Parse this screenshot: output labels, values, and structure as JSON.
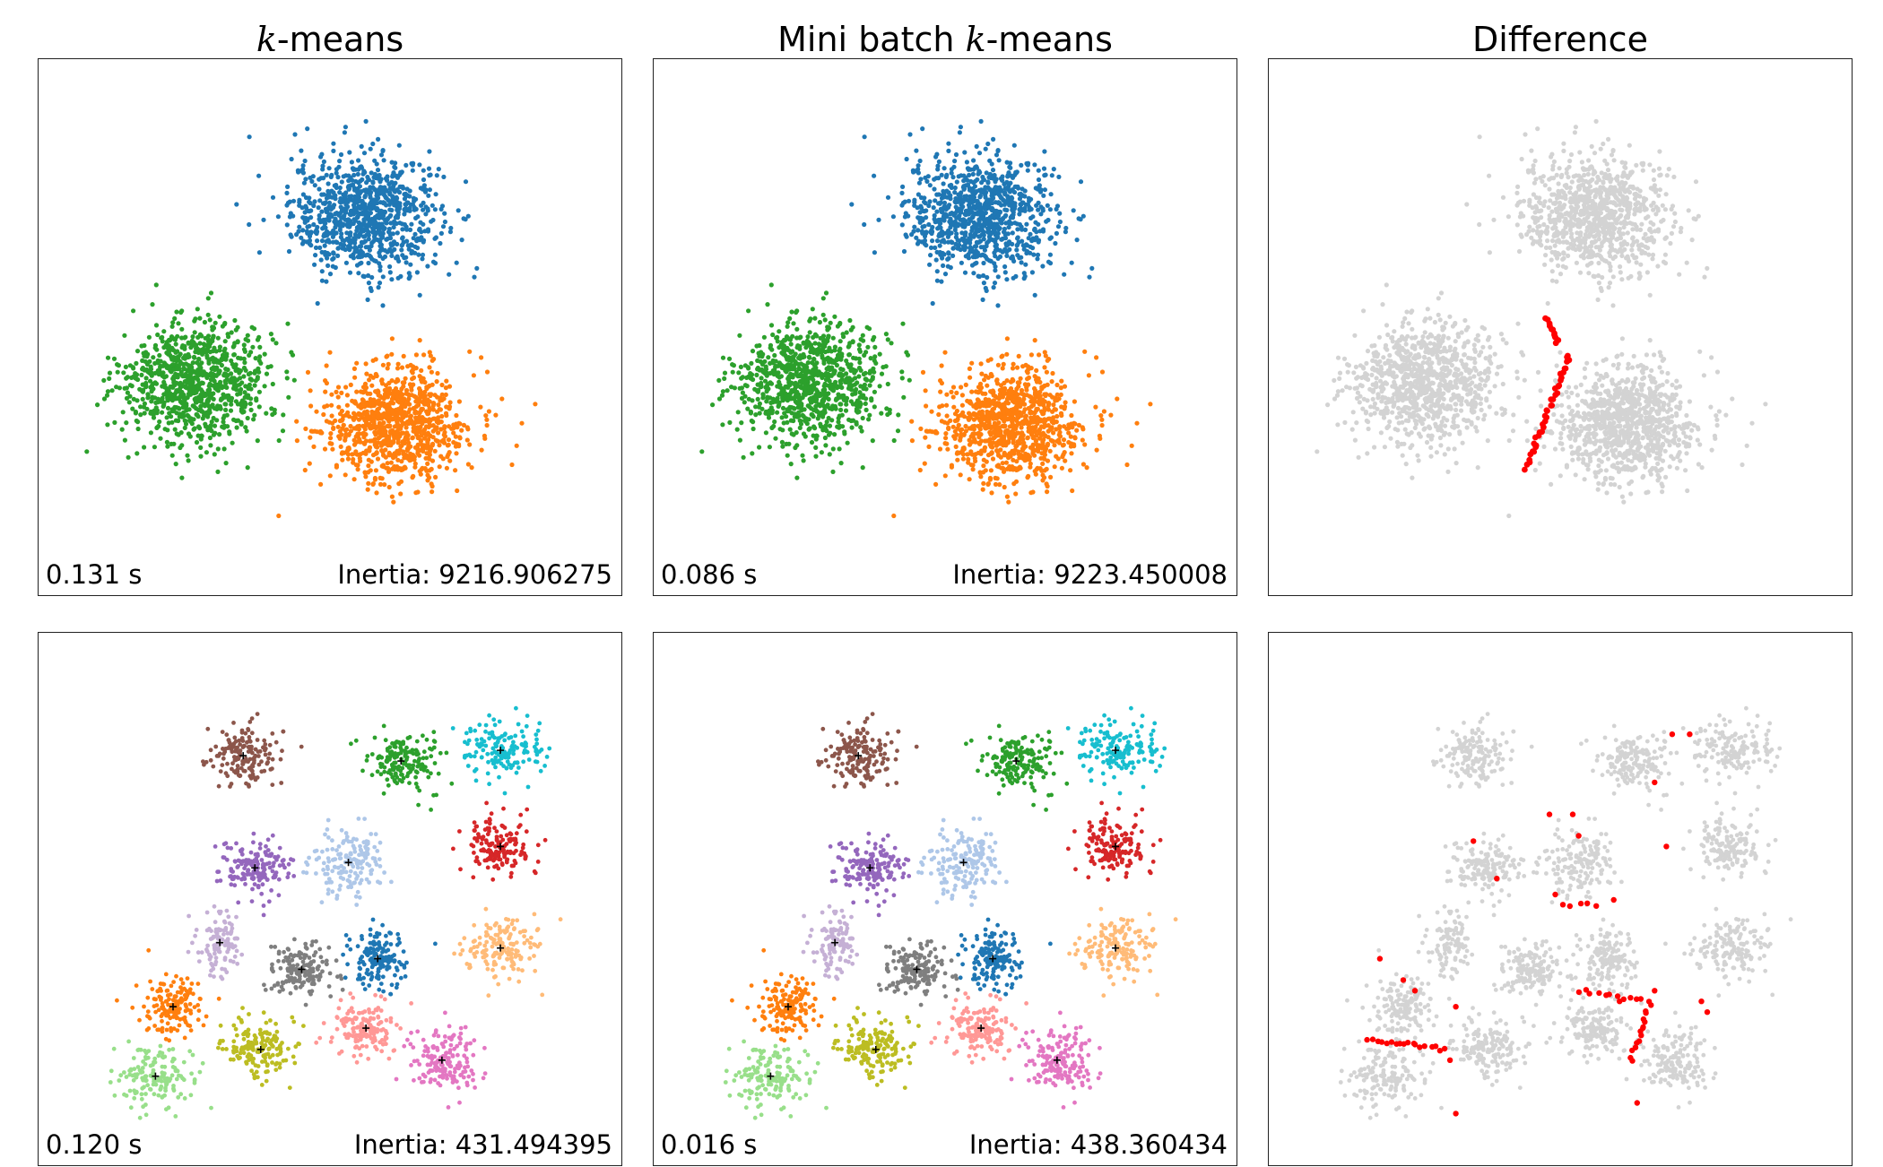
{
  "titles": {
    "col1_math": "k",
    "col1_rest": "-means",
    "col2_prefix": "Mini batch ",
    "col2_math": "k",
    "col2_rest": "-means",
    "col3": "Difference"
  },
  "rows": [
    {
      "kmeans": {
        "time": "0.131 s",
        "inertia": "Inertia: 9216.906275"
      },
      "minibatch": {
        "time": "0.086 s",
        "inertia": "Inertia: 9223.450008"
      }
    },
    {
      "kmeans": {
        "time": "0.120 s",
        "inertia": "Inertia: 431.494395"
      },
      "minibatch": {
        "time": "0.016 s",
        "inertia": "Inertia: 438.360434"
      }
    }
  ],
  "colors": {
    "background_points": "#d3d3d3",
    "difference_points": "#ff0000",
    "center_marker": "#000000"
  },
  "chart_data": [
    {
      "type": "scatter",
      "panel": "top-kmeans",
      "axis_range": {
        "x": [
          0,
          10
        ],
        "y": [
          0,
          10
        ]
      },
      "clusters": [
        {
          "color": "#1f77b4",
          "center": [
            5.6,
            7.1
          ],
          "spread": [
            1.15,
            1.0
          ],
          "n": 900
        },
        {
          "color": "#2ca02c",
          "center": [
            2.7,
            4.0
          ],
          "spread": [
            1.15,
            1.0
          ],
          "n": 900
        },
        {
          "color": "#ff7f0e",
          "center": [
            6.1,
            3.2
          ],
          "spread": [
            1.15,
            1.0
          ],
          "n": 900
        }
      ],
      "grid": false,
      "axes_ticks": false
    },
    {
      "type": "scatter",
      "panel": "top-minibatch",
      "axis_range": {
        "x": [
          0,
          10
        ],
        "y": [
          0,
          10
        ]
      },
      "clusters": [
        {
          "color": "#1f77b4",
          "center": [
            5.6,
            7.1
          ],
          "spread": [
            1.15,
            1.0
          ],
          "n": 900
        },
        {
          "color": "#2ca02c",
          "center": [
            2.7,
            4.0
          ],
          "spread": [
            1.15,
            1.0
          ],
          "n": 900
        },
        {
          "color": "#ff7f0e",
          "center": [
            6.1,
            3.2
          ],
          "spread": [
            1.15,
            1.0
          ],
          "n": 900
        }
      ],
      "grid": false,
      "axes_ticks": false
    },
    {
      "type": "scatter",
      "panel": "top-difference",
      "axis_range": {
        "x": [
          0,
          10
        ],
        "y": [
          0,
          10
        ]
      },
      "difference_segments": [
        {
          "from": [
            4.75,
            5.2
          ],
          "to": [
            4.95,
            4.7
          ],
          "n": 12
        },
        {
          "from": [
            5.15,
            4.5
          ],
          "to": [
            4.4,
            2.4
          ],
          "n": 40
        }
      ]
    },
    {
      "type": "scatter",
      "panel": "bottom-kmeans",
      "axis_range": {
        "x": [
          0,
          10
        ],
        "y": [
          0,
          10
        ]
      },
      "clusters": [
        {
          "color": "#8c564b",
          "center": [
            3.5,
            7.7
          ],
          "spread": [
            0.55,
            0.55
          ],
          "n": 160
        },
        {
          "color": "#2ca02c",
          "center": [
            6.2,
            7.6
          ],
          "spread": [
            0.55,
            0.5
          ],
          "n": 160
        },
        {
          "color": "#17becf",
          "center": [
            7.9,
            7.8
          ],
          "spread": [
            0.6,
            0.5
          ],
          "n": 160
        },
        {
          "color": "#9467bd",
          "center": [
            3.7,
            5.6
          ],
          "spread": [
            0.55,
            0.5
          ],
          "n": 160
        },
        {
          "color": "#aec7e8",
          "center": [
            5.3,
            5.7
          ],
          "spread": [
            0.6,
            0.55
          ],
          "n": 160
        },
        {
          "color": "#d62728",
          "center": [
            7.9,
            6.0
          ],
          "spread": [
            0.6,
            0.5
          ],
          "n": 160
        },
        {
          "color": "#c5b0d5",
          "center": [
            3.1,
            4.2
          ],
          "spread": [
            0.35,
            0.55
          ],
          "n": 110
        },
        {
          "color": "#7f7f7f",
          "center": [
            4.5,
            3.7
          ],
          "spread": [
            0.5,
            0.45
          ],
          "n": 160
        },
        {
          "color": "#1f77b4",
          "center": [
            5.8,
            3.9
          ],
          "spread": [
            0.45,
            0.5
          ],
          "n": 160
        },
        {
          "color": "#ffbb78",
          "center": [
            7.9,
            4.1
          ],
          "spread": [
            0.6,
            0.55
          ],
          "n": 160
        },
        {
          "color": "#ff7f0e",
          "center": [
            2.3,
            3.0
          ],
          "spread": [
            0.5,
            0.45
          ],
          "n": 150
        },
        {
          "color": "#bcbd22",
          "center": [
            3.8,
            2.2
          ],
          "spread": [
            0.55,
            0.5
          ],
          "n": 160
        },
        {
          "color": "#ff9896",
          "center": [
            5.6,
            2.6
          ],
          "spread": [
            0.55,
            0.5
          ],
          "n": 150
        },
        {
          "color": "#e377c2",
          "center": [
            6.9,
            2.0
          ],
          "spread": [
            0.55,
            0.55
          ],
          "n": 160
        },
        {
          "color": "#98df8a",
          "center": [
            2.0,
            1.7
          ],
          "spread": [
            0.6,
            0.55
          ],
          "n": 160
        }
      ],
      "centers_marked": true
    },
    {
      "type": "scatter",
      "panel": "bottom-minibatch",
      "axis_range": {
        "x": [
          0,
          10
        ],
        "y": [
          0,
          10
        ]
      },
      "clusters": [
        {
          "color": "#8c564b",
          "center": [
            3.5,
            7.7
          ],
          "spread": [
            0.55,
            0.55
          ],
          "n": 160
        },
        {
          "color": "#2ca02c",
          "center": [
            6.2,
            7.6
          ],
          "spread": [
            0.55,
            0.5
          ],
          "n": 160
        },
        {
          "color": "#17becf",
          "center": [
            7.9,
            7.8
          ],
          "spread": [
            0.6,
            0.5
          ],
          "n": 160
        },
        {
          "color": "#9467bd",
          "center": [
            3.7,
            5.6
          ],
          "spread": [
            0.55,
            0.5
          ],
          "n": 160
        },
        {
          "color": "#aec7e8",
          "center": [
            5.3,
            5.7
          ],
          "spread": [
            0.6,
            0.55
          ],
          "n": 160
        },
        {
          "color": "#d62728",
          "center": [
            7.9,
            6.0
          ],
          "spread": [
            0.6,
            0.5
          ],
          "n": 160
        },
        {
          "color": "#c5b0d5",
          "center": [
            3.1,
            4.2
          ],
          "spread": [
            0.35,
            0.55
          ],
          "n": 110
        },
        {
          "color": "#7f7f7f",
          "center": [
            4.5,
            3.7
          ],
          "spread": [
            0.5,
            0.45
          ],
          "n": 160
        },
        {
          "color": "#1f77b4",
          "center": [
            5.8,
            3.9
          ],
          "spread": [
            0.45,
            0.5
          ],
          "n": 160
        },
        {
          "color": "#ffbb78",
          "center": [
            7.9,
            4.1
          ],
          "spread": [
            0.6,
            0.55
          ],
          "n": 160
        },
        {
          "color": "#ff7f0e",
          "center": [
            2.3,
            3.0
          ],
          "spread": [
            0.5,
            0.45
          ],
          "n": 150
        },
        {
          "color": "#bcbd22",
          "center": [
            3.8,
            2.2
          ],
          "spread": [
            0.55,
            0.5
          ],
          "n": 160
        },
        {
          "color": "#ff9896",
          "center": [
            5.6,
            2.6
          ],
          "spread": [
            0.55,
            0.5
          ],
          "n": 150
        },
        {
          "color": "#e377c2",
          "center": [
            6.9,
            2.0
          ],
          "spread": [
            0.55,
            0.55
          ],
          "n": 160
        },
        {
          "color": "#98df8a",
          "center": [
            2.0,
            1.7
          ],
          "spread": [
            0.6,
            0.55
          ],
          "n": 160
        }
      ],
      "centers_marked": true
    },
    {
      "type": "scatter",
      "panel": "bottom-difference",
      "axis_range": {
        "x": [
          0,
          10
        ],
        "y": [
          0,
          10
        ]
      },
      "difference_segments": [
        {
          "from": [
            1.7,
            2.4
          ],
          "to": [
            3.0,
            2.2
          ],
          "n": 18
        },
        {
          "from": [
            6.5,
            3.1
          ],
          "to": [
            5.3,
            3.3
          ],
          "n": 12
        },
        {
          "from": [
            6.5,
            3.0
          ],
          "to": [
            6.2,
            2.0
          ],
          "n": 14
        },
        {
          "from": [
            5.0,
            4.9
          ],
          "to": [
            5.6,
            4.9
          ],
          "n": 5
        }
      ],
      "difference_points": [
        [
          1.9,
          3.9
        ],
        [
          2.3,
          3.5
        ],
        [
          2.5,
          3.3
        ],
        [
          3.2,
          3.0
        ],
        [
          3.1,
          2.0
        ],
        [
          3.2,
          1.0
        ],
        [
          3.5,
          6.1
        ],
        [
          4.8,
          6.6
        ],
        [
          5.2,
          6.6
        ],
        [
          5.3,
          6.2
        ],
        [
          4.9,
          5.1
        ],
        [
          5.9,
          5.0
        ],
        [
          6.6,
          7.2
        ],
        [
          6.8,
          6.0
        ],
        [
          6.6,
          3.3
        ],
        [
          6.0,
          3.1
        ],
        [
          7.4,
          3.1
        ],
        [
          6.9,
          8.1
        ],
        [
          7.2,
          8.1
        ],
        [
          7.5,
          2.9
        ],
        [
          6.3,
          1.2
        ],
        [
          6.4,
          2.6
        ],
        [
          3.9,
          5.4
        ]
      ]
    }
  ]
}
